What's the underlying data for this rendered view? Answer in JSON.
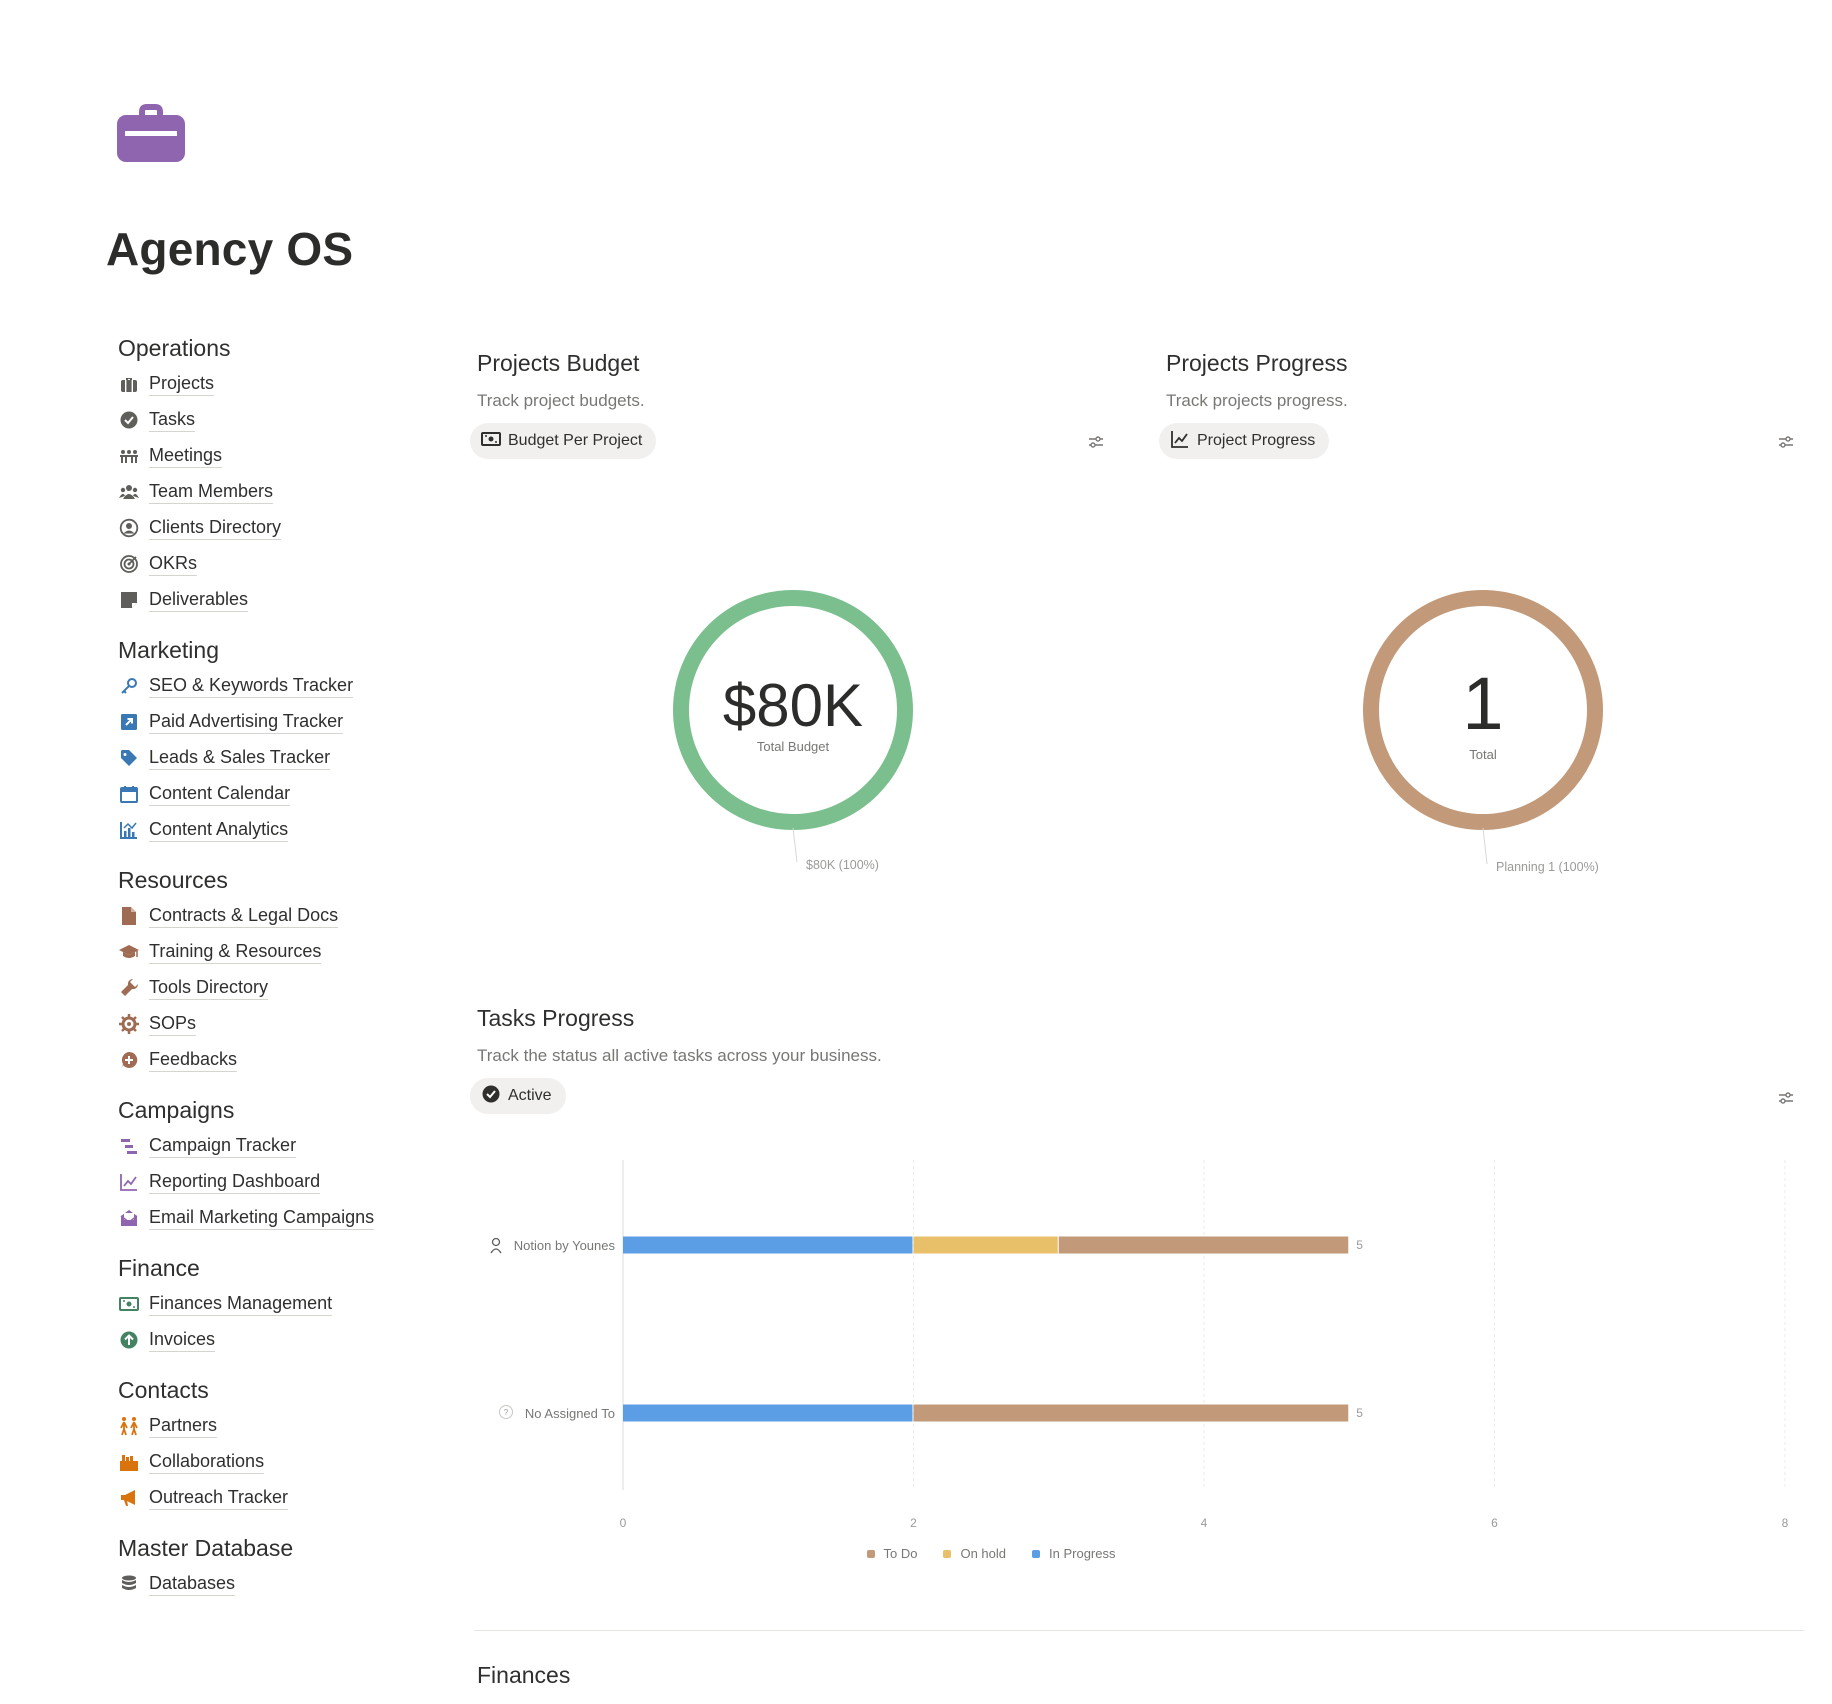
{
  "page": {
    "title": "Agency OS",
    "icon": "briefcase-icon",
    "icon_color": "#9065b0"
  },
  "nav": {
    "sections": [
      {
        "heading": "Operations",
        "items": [
          {
            "label": "Projects",
            "icon": "briefcase-icon"
          },
          {
            "label": "Tasks",
            "icon": "check-circle-icon"
          },
          {
            "label": "Meetings",
            "icon": "meeting-icon"
          },
          {
            "label": "Team Members",
            "icon": "people-icon"
          },
          {
            "label": "Clients Directory",
            "icon": "user-circle-icon"
          },
          {
            "label": "OKRs",
            "icon": "target-icon"
          },
          {
            "label": "Deliverables",
            "icon": "note-icon"
          }
        ]
      },
      {
        "heading": "Marketing",
        "items": [
          {
            "label": "SEO & Keywords Tracker",
            "icon": "key-icon"
          },
          {
            "label": "Paid Advertising Tracker",
            "icon": "arrow-box-icon"
          },
          {
            "label": "Leads & Sales Tracker",
            "icon": "tag-icon"
          },
          {
            "label": "Content Calendar",
            "icon": "calendar-icon"
          },
          {
            "label": "Content Analytics",
            "icon": "analytics-icon"
          }
        ]
      },
      {
        "heading": "Resources",
        "items": [
          {
            "label": "Contracts & Legal Docs",
            "icon": "document-icon"
          },
          {
            "label": "Training & Resources",
            "icon": "graduation-cap-icon"
          },
          {
            "label": "Tools Directory",
            "icon": "wrench-icon"
          },
          {
            "label": "SOPs",
            "icon": "gear-icon"
          },
          {
            "label": "Feedbacks",
            "icon": "chat-plus-icon"
          }
        ]
      },
      {
        "heading": "Campaigns",
        "items": [
          {
            "label": "Campaign Tracker",
            "icon": "timeline-icon"
          },
          {
            "label": "Reporting Dashboard",
            "icon": "line-chart-icon"
          },
          {
            "label": "Email Marketing Campaigns",
            "icon": "envelope-open-icon"
          }
        ]
      },
      {
        "heading": "Finance",
        "items": [
          {
            "label": "Finances Management",
            "icon": "money-icon"
          },
          {
            "label": "Invoices",
            "icon": "arrow-up-circle-icon"
          }
        ]
      },
      {
        "heading": "Contacts",
        "items": [
          {
            "label": "Partners",
            "icon": "partners-icon"
          },
          {
            "label": "Collaborations",
            "icon": "handshake-icon"
          },
          {
            "label": "Outreach Tracker",
            "icon": "megaphone-icon"
          }
        ]
      },
      {
        "heading": "Master Database",
        "items": [
          {
            "label": "Databases",
            "icon": "database-icon"
          }
        ]
      }
    ]
  },
  "budget_widget": {
    "title": "Projects Budget",
    "description": "Track project budgets.",
    "view_label": "Budget Per Project",
    "view_icon": "money-icon",
    "value": "$80K",
    "caption": "Total Budget",
    "callout": "$80K (100%)",
    "ring_color": "#7bbf8e"
  },
  "progress_widget": {
    "title": "Projects Progress",
    "description": "Track projects progress.",
    "view_label": "Project Progress",
    "view_icon": "line-chart-icon",
    "value": "1",
    "caption": "Total",
    "callout": "Planning 1 (100%)",
    "ring_color": "#c29a7a"
  },
  "tasks_widget": {
    "title": "Tasks Progress",
    "description": "Track the status all active tasks across your business.",
    "view_label": "Active",
    "view_icon": "check-circle-icon"
  },
  "chart_data": {
    "type": "bar",
    "orientation": "horizontal",
    "stacked": true,
    "categories": [
      "Notion by Younes",
      "No Assigned To"
    ],
    "series": [
      {
        "name": "In Progress",
        "color": "#5b9ee6",
        "values": [
          2,
          2
        ]
      },
      {
        "name": "On hold",
        "color": "#e8c06a",
        "values": [
          1,
          0
        ]
      },
      {
        "name": "To Do",
        "color": "#c29a7a",
        "values": [
          2,
          3
        ]
      }
    ],
    "totals": [
      "5",
      "5"
    ],
    "xticks": [
      "0",
      "2",
      "4",
      "6",
      "8"
    ],
    "xlim": [
      0,
      8
    ],
    "legend": [
      "To Do",
      "On hold",
      "In Progress"
    ],
    "legend_position": "bottom",
    "grid": true
  },
  "finances_section": {
    "title": "Finances"
  }
}
